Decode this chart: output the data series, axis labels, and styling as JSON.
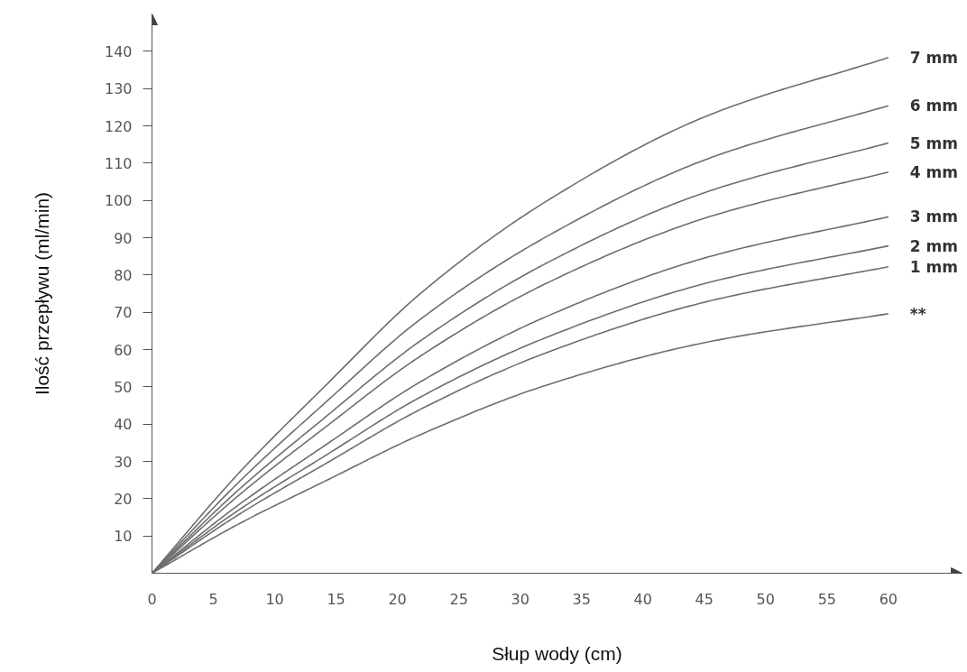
{
  "chart_data": {
    "type": "line",
    "xlabel": "Słup wody (cm)",
    "ylabel": "Ilość przepływu (ml/min)",
    "xlim": [
      0,
      66
    ],
    "ylim": [
      0,
      150
    ],
    "xticks": [
      0,
      5,
      10,
      15,
      20,
      25,
      30,
      35,
      40,
      45,
      50,
      55,
      60
    ],
    "yticks": [
      10,
      20,
      30,
      40,
      50,
      60,
      70,
      80,
      90,
      100,
      110,
      120,
      130,
      140
    ],
    "grid": false,
    "marker": "none",
    "line_style": "solid",
    "x": [
      0,
      7,
      14.1,
      21.9,
      32.1,
      45.4,
      60
    ],
    "series": [
      {
        "name": "7 mm",
        "color": "#6e6e6e",
        "values": [
          0,
          26.6,
          50.2,
          75.1,
          99.7,
          122.9,
          138.3
        ]
      },
      {
        "name": "6 mm",
        "color": "#6e6e6e",
        "values": [
          0,
          24.2,
          45.7,
          68.2,
          90.2,
          111.3,
          125.4
        ]
      },
      {
        "name": "5 mm",
        "color": "#6e6e6e",
        "values": [
          0,
          22.2,
          41.8,
          62.4,
          83.1,
          102.5,
          115.4
        ]
      },
      {
        "name": "4 mm",
        "color": "#6e6e6e",
        "values": [
          0,
          20.7,
          39.1,
          58.3,
          77.7,
          95.6,
          107.6
        ]
      },
      {
        "name": "3 mm",
        "color": "#6e6e6e",
        "values": [
          0,
          18.2,
          34.3,
          51.4,
          68.8,
          84.9,
          95.6
        ]
      },
      {
        "name": "2 mm",
        "color": "#6e6e6e",
        "values": [
          0,
          16.8,
          31.5,
          47.3,
          63.2,
          78.0,
          87.8
        ]
      },
      {
        "name": "1 mm",
        "color": "#6e6e6e",
        "values": [
          0,
          15.6,
          29.3,
          44.0,
          59.1,
          73.0,
          82.2
        ]
      },
      {
        "name": "**",
        "color": "#6e6e6e",
        "values": [
          0,
          13.1,
          24.7,
          37.2,
          50.4,
          62.1,
          69.6
        ]
      }
    ]
  }
}
